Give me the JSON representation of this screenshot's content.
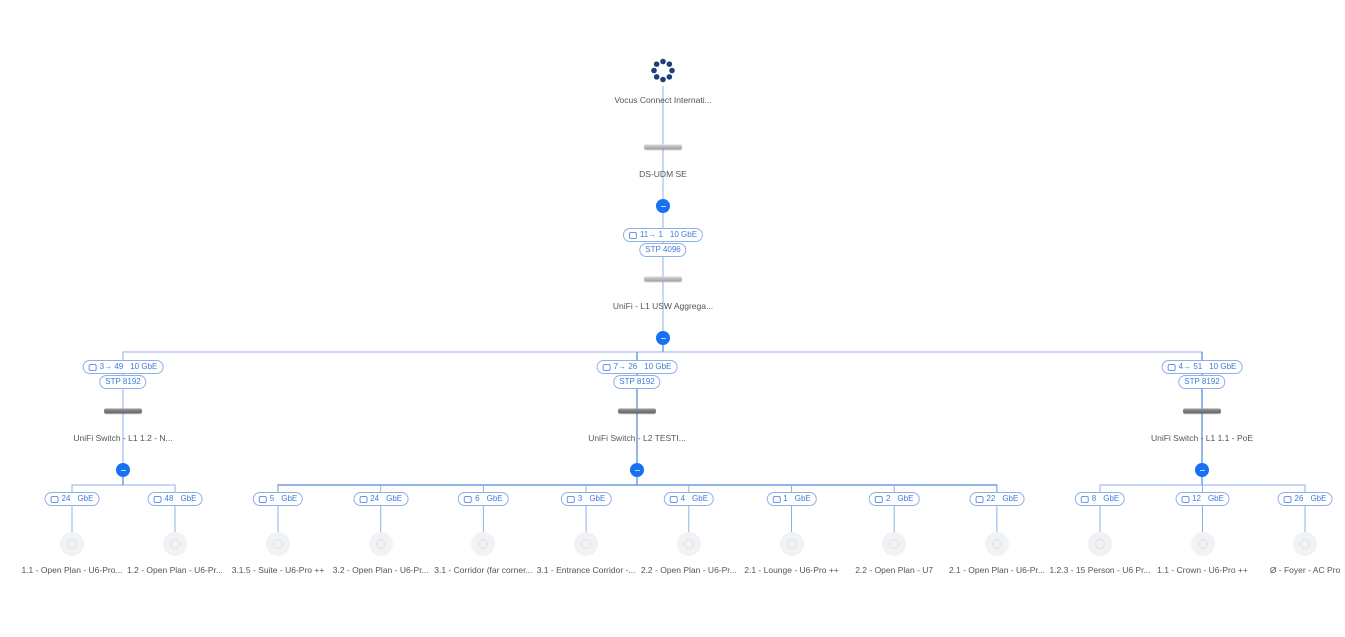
{
  "accent_color": "#1672f3",
  "line_color": "#8eb0ea",
  "internet": {
    "label": "Vocus Connect Internati...",
    "icon": "globe-dots-icon"
  },
  "gateway": {
    "label": "DS-UDM SE",
    "icon": "gateway-device-icon"
  },
  "aggregation": {
    "uplink": {
      "ports": "11→ 1",
      "speed": "10 GbE"
    },
    "stp": "STP 4096",
    "label": "UniFi - L1 USW Aggrega..."
  },
  "switches": [
    {
      "label": "UniFi Switch - L1 1.2 - N...",
      "uplink": {
        "ports": "3→ 49",
        "speed": "10 GbE"
      },
      "stp": "STP 8192",
      "children": [
        {
          "port": "24",
          "speed": "GbE",
          "label": "1.1 - Open Plan - U6-Pro..."
        },
        {
          "port": "48",
          "speed": "GbE",
          "label": "1.2 - Open Plan - U6-Pr..."
        }
      ]
    },
    {
      "label": "UniFi Switch - L2 TESTI...",
      "uplink": {
        "ports": "7→ 26",
        "speed": "10 GbE"
      },
      "stp": "STP 8192",
      "children": [
        {
          "port": "5",
          "speed": "GbE",
          "label": "3.1.5 - Suite - U6-Pro ++"
        },
        {
          "port": "24",
          "speed": "GbE",
          "label": "3.2 - Open Plan - U6-Pr..."
        },
        {
          "port": "6",
          "speed": "GbE",
          "label": "3.1 - Corridor (far corner..."
        },
        {
          "port": "3",
          "speed": "GbE",
          "label": "3.1 - Entrance Corridor -..."
        },
        {
          "port": "4",
          "speed": "GbE",
          "label": "2.2 - Open Plan - U6-Pr..."
        },
        {
          "port": "1",
          "speed": "GbE",
          "label": "2.1 - Lounge - U6-Pro ++"
        },
        {
          "port": "2",
          "speed": "GbE",
          "label": "2.2 - Open Plan - U7"
        },
        {
          "port": "22",
          "speed": "GbE",
          "label": "2.1 - Open Plan - U6-Pr..."
        }
      ]
    },
    {
      "label": "UniFi Switch - L1 1.1 - PoE",
      "uplink": {
        "ports": "4→ 51",
        "speed": "10 GbE"
      },
      "stp": "STP 8192",
      "children": [
        {
          "port": "8",
          "speed": "GbE",
          "label": "1.2.3 - 15 Person - U6 Pr..."
        },
        {
          "port": "12",
          "speed": "GbE",
          "label": "1.1 - Crown - U6-Pro ++"
        },
        {
          "port": "26",
          "speed": "GbE",
          "label": "Ø - Foyer - AC Pro"
        }
      ]
    }
  ]
}
